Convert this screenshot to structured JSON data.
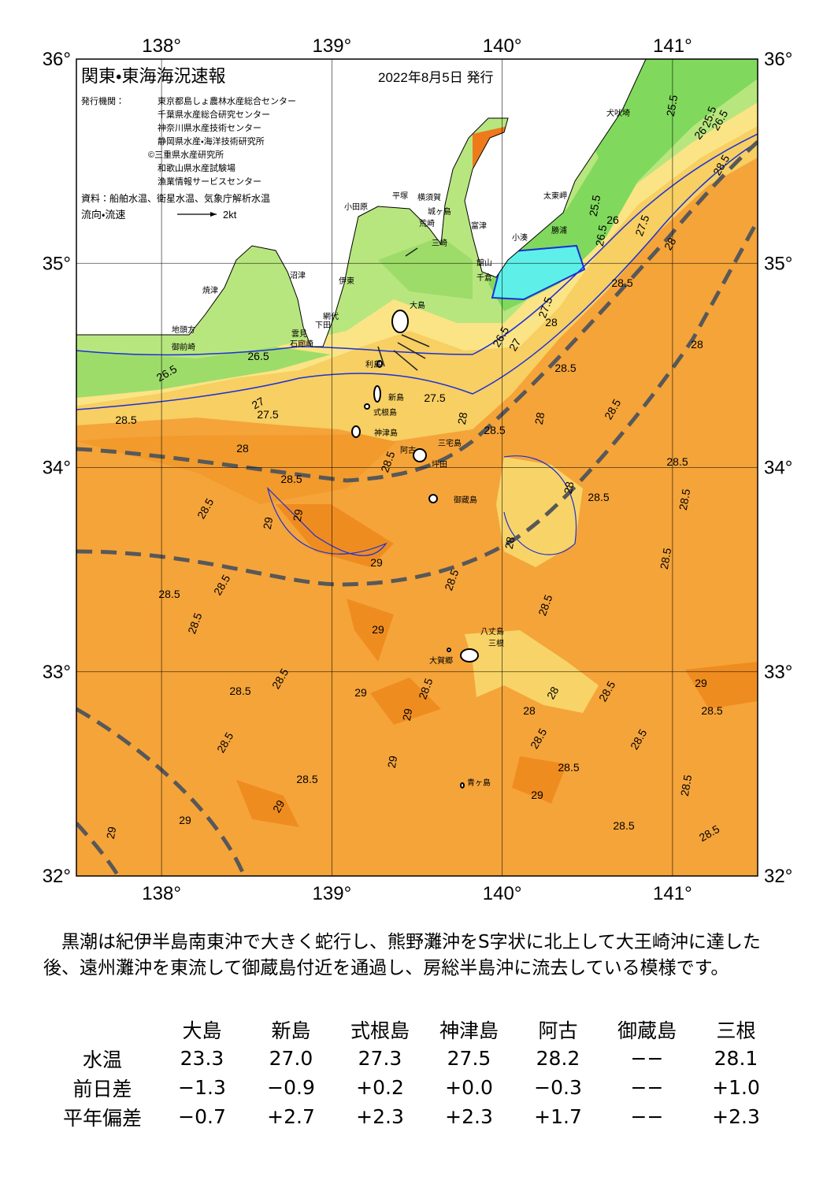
{
  "header": {
    "title": "関東・東海海況速報",
    "date": "2022年8月5日 発行",
    "issuer_label": "発行機関：",
    "issuers": [
      "東京都島しょ農林水産総合センター",
      "千葉県水産総合研究センター",
      "神奈川県水産技術センター",
      "静岡県水産・海洋技術研究所",
      "©三重県水産研究所",
      "和歌山県水産試験場",
      "漁業情報サービスセンター"
    ],
    "source": "資料：船舶水温、衛星水温、気象庁解析水温",
    "legend_label": "流向・流速",
    "legend_speed": "2kt"
  },
  "map": {
    "lonlim": [
      137.5,
      141.5
    ],
    "latlim": [
      32,
      36
    ],
    "lon_ticks": [
      {
        "value": 138,
        "label": "138°"
      },
      {
        "value": 139,
        "label": "139°"
      },
      {
        "value": 140,
        "label": "140°"
      },
      {
        "value": 141,
        "label": "141°"
      }
    ],
    "lat_ticks": [
      {
        "value": 36,
        "label": "36°"
      },
      {
        "value": 35,
        "label": "35°"
      },
      {
        "value": 34,
        "label": "34°"
      },
      {
        "value": 33,
        "label": "33°"
      },
      {
        "value": 32,
        "label": "32°"
      }
    ],
    "place_names": [
      "犬吠埼",
      "太東岬",
      "勝浦",
      "小湊",
      "富津",
      "平塚",
      "横須賀",
      "城ヶ島",
      "荒崎",
      "三崎",
      "館山",
      "千倉",
      "小田原",
      "沼津",
      "伊東",
      "焼津",
      "網代",
      "雲見",
      "下田",
      "石廊崎",
      "地頭方",
      "御前崎",
      "大島",
      "利島",
      "新島",
      "式根島",
      "神津島",
      "三宅島",
      "坪田",
      "阿古",
      "御蔵島",
      "八丈島",
      "三根",
      "大賀郷",
      "青ヶ島"
    ],
    "contour_labels": [
      "25.5",
      "25.5",
      "26",
      "26.5",
      "28.5",
      "25.5",
      "26",
      "26.5",
      "27.5",
      "28",
      "28.5",
      "28",
      "26.5",
      "27",
      "27.5",
      "28",
      "26.5",
      "26.5",
      "27",
      "27.5",
      "28.5",
      "27.5",
      "28",
      "28.5",
      "28",
      "28.5",
      "28.5",
      "28",
      "28.5",
      "28.5",
      "28.5",
      "29",
      "29",
      "28",
      "28.5",
      "28.5",
      "28.5",
      "28",
      "28.5",
      "29",
      "28.5",
      "28.5",
      "28.5",
      "28.5",
      "28.5",
      "29",
      "28.5",
      "28.5",
      "29",
      "28.5",
      "29",
      "28",
      "28",
      "28.5",
      "29",
      "28.5",
      "28.5",
      "28.5",
      "28.5",
      "29",
      "28.5",
      "28.5",
      "28.5",
      "29",
      "29",
      "29",
      "29",
      "28.5",
      "28.5"
    ]
  },
  "summary": "　黒潮は紀伊半島南東沖で大きく蛇行し、熊野灘沖をS字状に北上して大王崎沖に達した後、遠州灘沖を東流して御蔵島付近を通過し、房総半島沖に流去している模様です。",
  "table": {
    "columns": [
      "大島",
      "新島",
      "式根島",
      "神津島",
      "阿古",
      "御蔵島",
      "三根"
    ],
    "rows": [
      {
        "label": "水温",
        "values": [
          "23.3",
          "27.0",
          "27.3",
          "27.5",
          "28.2",
          "−−",
          "28.1"
        ]
      },
      {
        "label": "前日差",
        "values": [
          "−1.3",
          "−0.9",
          "+0.2",
          "+0.0",
          "−0.3",
          "−−",
          "+1.0"
        ]
      },
      {
        "label": "平年偏差",
        "values": [
          "−0.7",
          "+2.7",
          "+2.3",
          "+2.3",
          "+1.7",
          "−−",
          "+2.3"
        ]
      }
    ]
  }
}
